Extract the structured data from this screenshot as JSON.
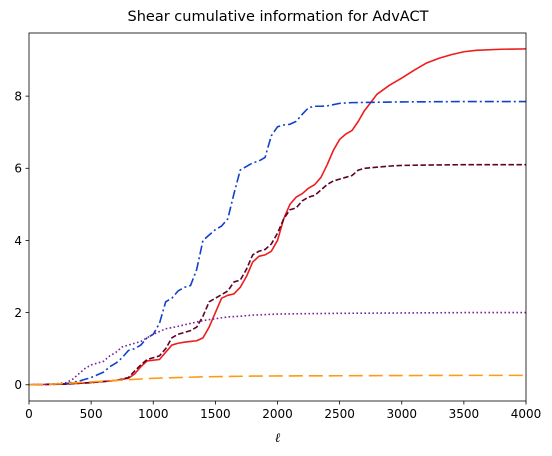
{
  "chart_data": {
    "type": "line",
    "title": "Shear cumulative information for AdvACT",
    "xlabel": "ℓ",
    "ylabel": "",
    "xlim": [
      0,
      4000
    ],
    "ylim": [
      -0.45,
      9.75
    ],
    "xticks": [
      0,
      500,
      1000,
      1500,
      2000,
      2500,
      3000,
      3500,
      4000
    ],
    "yticks": [
      0,
      2,
      4,
      6,
      8
    ],
    "grid": false,
    "legend": "none",
    "series": [
      {
        "color": "#ee1c1c",
        "style": "solid",
        "x": [
          0,
          300,
          500,
          700,
          800,
          850,
          900,
          950,
          1000,
          1050,
          1100,
          1150,
          1200,
          1250,
          1300,
          1350,
          1400,
          1450,
          1500,
          1550,
          1600,
          1650,
          1700,
          1750,
          1800,
          1850,
          1900,
          1950,
          2000,
          2050,
          2100,
          2150,
          2200,
          2250,
          2300,
          2350,
          2400,
          2450,
          2500,
          2550,
          2600,
          2650,
          2700,
          2750,
          2800,
          2900,
          3000,
          3100,
          3200,
          3300,
          3400,
          3500,
          3600,
          3800,
          4000
        ],
        "y": [
          0,
          0.02,
          0.06,
          0.12,
          0.18,
          0.3,
          0.5,
          0.66,
          0.68,
          0.7,
          0.9,
          1.1,
          1.15,
          1.18,
          1.2,
          1.22,
          1.3,
          1.6,
          2.0,
          2.4,
          2.48,
          2.52,
          2.7,
          3.0,
          3.4,
          3.56,
          3.6,
          3.7,
          4.0,
          4.6,
          5.0,
          5.2,
          5.3,
          5.45,
          5.55,
          5.75,
          6.1,
          6.5,
          6.8,
          6.95,
          7.05,
          7.3,
          7.6,
          7.82,
          8.05,
          8.3,
          8.5,
          8.72,
          8.92,
          9.05,
          9.15,
          9.23,
          9.27,
          9.3,
          9.31
        ]
      },
      {
        "color": "#1140cc",
        "style": "dashdot",
        "x": [
          0,
          300,
          400,
          500,
          600,
          650,
          700,
          750,
          800,
          850,
          900,
          950,
          1000,
          1050,
          1100,
          1150,
          1200,
          1250,
          1300,
          1350,
          1400,
          1450,
          1500,
          1550,
          1600,
          1650,
          1700,
          1750,
          1800,
          1850,
          1900,
          1950,
          2000,
          2050,
          2100,
          2150,
          2200,
          2250,
          2300,
          2350,
          2400,
          2500,
          2600,
          3000,
          3500,
          4000
        ],
        "y": [
          0,
          0.03,
          0.1,
          0.2,
          0.35,
          0.5,
          0.6,
          0.75,
          0.95,
          1.0,
          1.1,
          1.3,
          1.4,
          1.7,
          2.3,
          2.4,
          2.6,
          2.7,
          2.75,
          3.2,
          4.0,
          4.15,
          4.3,
          4.4,
          4.6,
          5.3,
          5.95,
          6.05,
          6.15,
          6.2,
          6.3,
          6.9,
          7.15,
          7.2,
          7.22,
          7.3,
          7.5,
          7.68,
          7.72,
          7.72,
          7.73,
          7.8,
          7.82,
          7.84,
          7.85,
          7.85
        ]
      },
      {
        "color": "#5e0226",
        "style": "dashed",
        "x": [
          0,
          300,
          500,
          700,
          800,
          850,
          900,
          950,
          1000,
          1050,
          1100,
          1150,
          1200,
          1250,
          1300,
          1350,
          1400,
          1450,
          1500,
          1550,
          1600,
          1650,
          1700,
          1750,
          1800,
          1850,
          1900,
          1950,
          2000,
          2050,
          2100,
          2150,
          2200,
          2250,
          2300,
          2350,
          2400,
          2450,
          2500,
          2550,
          2600,
          2650,
          2700,
          2800,
          2900,
          3000,
          3200,
          3500,
          4000
        ],
        "y": [
          0,
          0.02,
          0.06,
          0.12,
          0.2,
          0.38,
          0.55,
          0.7,
          0.75,
          0.8,
          1.0,
          1.3,
          1.4,
          1.45,
          1.5,
          1.6,
          1.9,
          2.3,
          2.4,
          2.5,
          2.6,
          2.85,
          2.9,
          3.2,
          3.6,
          3.7,
          3.75,
          3.9,
          4.2,
          4.6,
          4.85,
          4.9,
          5.1,
          5.2,
          5.25,
          5.4,
          5.55,
          5.65,
          5.7,
          5.75,
          5.8,
          5.95,
          6.0,
          6.03,
          6.06,
          6.08,
          6.09,
          6.1,
          6.1
        ]
      },
      {
        "color": "#7a1fa2",
        "style": "dotted",
        "x": [
          0,
          200,
          300,
          350,
          400,
          450,
          500,
          600,
          650,
          700,
          750,
          800,
          900,
          1000,
          1100,
          1200,
          1300,
          1400,
          1500,
          1600,
          1700,
          1800,
          2000,
          2200,
          2500,
          3000,
          3500,
          4000
        ],
        "y": [
          0,
          0.02,
          0.06,
          0.15,
          0.3,
          0.45,
          0.55,
          0.65,
          0.8,
          0.9,
          1.05,
          1.1,
          1.2,
          1.4,
          1.55,
          1.62,
          1.7,
          1.78,
          1.83,
          1.88,
          1.9,
          1.93,
          1.96,
          1.97,
          1.98,
          1.99,
          2.0,
          2.0
        ]
      },
      {
        "color": "#ff9a14",
        "style": "longdash",
        "x": [
          0,
          200,
          400,
          600,
          800,
          1000,
          1200,
          1400,
          1600,
          1800,
          2000,
          2500,
          3000,
          3500,
          4000
        ],
        "y": [
          0,
          0.02,
          0.06,
          0.1,
          0.14,
          0.18,
          0.2,
          0.22,
          0.23,
          0.24,
          0.245,
          0.25,
          0.255,
          0.26,
          0.26
        ]
      }
    ]
  }
}
